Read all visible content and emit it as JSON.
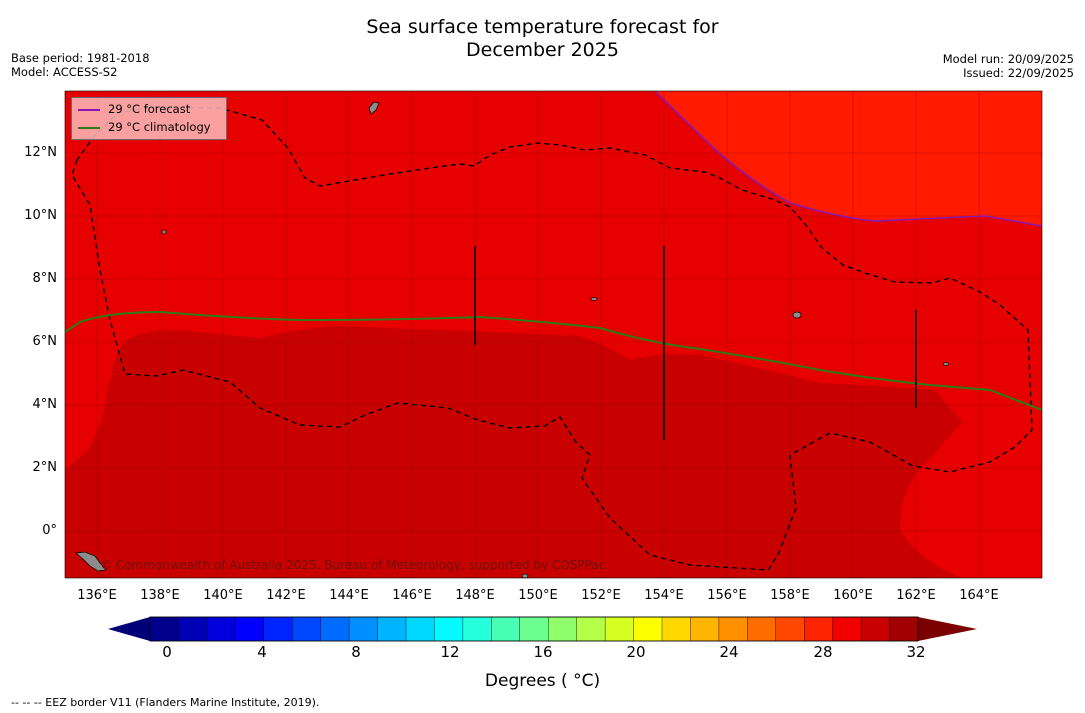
{
  "title_line1": "Sea surface temperature forecast for",
  "title_line2": "December 2025",
  "base_period": "Base period: 1981-2018",
  "model": "Model: ACCESS-S2",
  "model_run": "Model run: 20/09/2025",
  "issued": "Issued: 22/09/2025",
  "legend": {
    "forecast": "29 °C  forecast",
    "climatology": "29 °C  climatology",
    "forecast_color": "#8a18b0",
    "climatology_color": "#2f7a1a"
  },
  "copyright": "© Commonwealth of Australia 2025, Bureau of Meteorology, supported by COSPPac",
  "footnote": "--  --  -- EEZ border V11 (Flanders Marine Institute, 2019).",
  "colorbar_title": "Degrees ( °C)",
  "colorbar_ticks": [
    "0",
    "4",
    "8",
    "12",
    "16",
    "20",
    "24",
    "28",
    "32"
  ],
  "colorbar_colors": [
    "#00008c",
    "#0000b4",
    "#0000dc",
    "#0000ff",
    "#0024ff",
    "#0048ff",
    "#006cff",
    "#0090ff",
    "#00b4ff",
    "#00d8ff",
    "#00fcff",
    "#24ffdc",
    "#48ffb4",
    "#6cff90",
    "#90ff6c",
    "#b4ff48",
    "#d8ff24",
    "#fcff00",
    "#ffd800",
    "#ffb400",
    "#ff9000",
    "#ff6c00",
    "#ff4800",
    "#ff2400",
    "#f00000",
    "#c80000",
    "#a00000"
  ],
  "colorbar_under": "#000078",
  "colorbar_over": "#7d0000",
  "axis": {
    "lat_labels": [
      "12°N",
      "10°N",
      "8°N",
      "6°N",
      "4°N",
      "2°N",
      "0°"
    ],
    "lon_labels": [
      "136°E",
      "138°E",
      "140°E",
      "142°E",
      "144°E",
      "146°E",
      "148°E",
      "150°E",
      "152°E",
      "154°E",
      "156°E",
      "158°E",
      "160°E",
      "162°E",
      "164°E"
    ]
  },
  "map_colors": {
    "t28_29": "#e60000",
    "t29_30": "#c80000",
    "t27_28": "#ff1a00",
    "land": "#8c8c8c"
  }
}
